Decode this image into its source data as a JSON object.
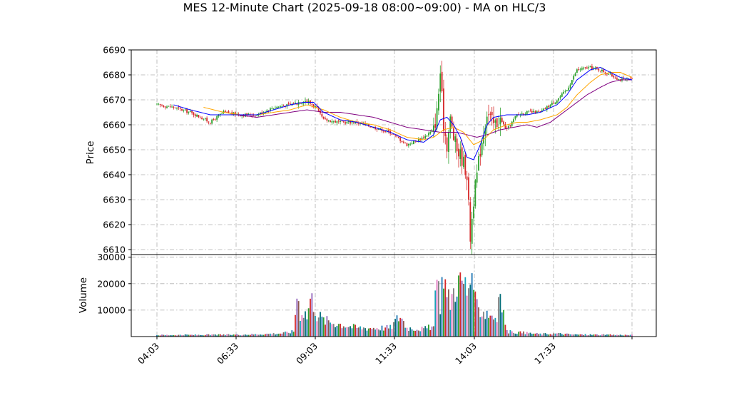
{
  "chart_data": {
    "type": "candlestick",
    "title": "MES 12-Minute Chart (2025-09-18 08:00~09:00) - MA on HLC/3",
    "price_panel": {
      "ylabel": "Price",
      "ylim": [
        6608,
        6690
      ],
      "yticks": [
        6610,
        6620,
        6630,
        6640,
        6650,
        6660,
        6670,
        6680,
        6690
      ],
      "grid": true
    },
    "volume_panel": {
      "ylabel": "Volume",
      "ylim": [
        0,
        31000
      ],
      "yticks": [
        10000,
        20000,
        30000
      ],
      "grid": true
    },
    "x_axis": {
      "tick_labels": [
        "04:03",
        "06:33",
        "09:03",
        "11:33",
        "14:03",
        "17:33"
      ]
    },
    "colors": {
      "up": "#2ca02c",
      "down": "#d62728",
      "ma_fast": "#0000ff",
      "ma_mid": "#ffa500",
      "ma_slow": "#800080",
      "volume": [
        "#1f77b4",
        "#2ca02c",
        "#d62728",
        "#9467bd",
        "#8c564b",
        "#17a2b8",
        "#e377c2",
        "#7f7f7f",
        "#006d77"
      ]
    },
    "price_anchors": [
      [
        0,
        6668
      ],
      [
        10,
        6667
      ],
      [
        20,
        6665
      ],
      [
        32,
        6661
      ],
      [
        40,
        6665
      ],
      [
        50,
        6664
      ],
      [
        60,
        6664
      ],
      [
        70,
        6667
      ],
      [
        80,
        6668
      ],
      [
        88,
        6670
      ],
      [
        94,
        6668
      ],
      [
        100,
        6662
      ],
      [
        110,
        6661
      ],
      [
        120,
        6661
      ],
      [
        130,
        6659
      ],
      [
        140,
        6657
      ],
      [
        150,
        6652
      ],
      [
        160,
        6655
      ],
      [
        166,
        6658
      ],
      [
        168,
        6665
      ],
      [
        170,
        6681
      ],
      [
        172,
        6660
      ],
      [
        174,
        6652
      ],
      [
        176,
        6662
      ],
      [
        178,
        6655
      ],
      [
        180,
        6650
      ],
      [
        182,
        6648
      ],
      [
        184,
        6645
      ],
      [
        186,
        6640
      ],
      [
        188,
        6615
      ],
      [
        190,
        6630
      ],
      [
        194,
        6650
      ],
      [
        198,
        6665
      ],
      [
        202,
        6660
      ],
      [
        206,
        6662
      ],
      [
        210,
        6658
      ],
      [
        216,
        6664
      ],
      [
        222,
        6665
      ],
      [
        230,
        6665
      ],
      [
        240,
        6670
      ],
      [
        246,
        6674
      ],
      [
        252,
        6682
      ],
      [
        260,
        6683
      ],
      [
        266,
        6682
      ],
      [
        272,
        6680
      ],
      [
        278,
        6678
      ],
      [
        285,
        6678
      ]
    ],
    "ma_fast": [
      [
        10,
        6668
      ],
      [
        20,
        6666
      ],
      [
        32,
        6664
      ],
      [
        40,
        6664
      ],
      [
        50,
        6664
      ],
      [
        60,
        6664
      ],
      [
        70,
        6666
      ],
      [
        80,
        6668
      ],
      [
        88,
        6669
      ],
      [
        94,
        6669
      ],
      [
        100,
        6665
      ],
      [
        110,
        6662
      ],
      [
        120,
        6661
      ],
      [
        130,
        6659
      ],
      [
        140,
        6657
      ],
      [
        150,
        6654
      ],
      [
        160,
        6653
      ],
      [
        166,
        6656
      ],
      [
        170,
        6662
      ],
      [
        174,
        6663
      ],
      [
        178,
        6660
      ],
      [
        182,
        6655
      ],
      [
        186,
        6647
      ],
      [
        190,
        6646
      ],
      [
        194,
        6652
      ],
      [
        198,
        6660
      ],
      [
        202,
        6663
      ],
      [
        210,
        6664
      ],
      [
        216,
        6664
      ],
      [
        222,
        6664
      ],
      [
        230,
        6665
      ],
      [
        240,
        6668
      ],
      [
        246,
        6672
      ],
      [
        252,
        6678
      ],
      [
        260,
        6682
      ],
      [
        266,
        6683
      ],
      [
        272,
        6681
      ],
      [
        278,
        6679
      ],
      [
        285,
        6678
      ]
    ],
    "ma_mid": [
      [
        28,
        6667
      ],
      [
        40,
        6665
      ],
      [
        50,
        6664
      ],
      [
        60,
        6664
      ],
      [
        70,
        6665
      ],
      [
        80,
        6666
      ],
      [
        90,
        6668
      ],
      [
        100,
        6666
      ],
      [
        110,
        6663
      ],
      [
        120,
        6661
      ],
      [
        130,
        6660
      ],
      [
        140,
        6658
      ],
      [
        150,
        6655
      ],
      [
        160,
        6654
      ],
      [
        166,
        6655
      ],
      [
        172,
        6658
      ],
      [
        178,
        6659
      ],
      [
        184,
        6657
      ],
      [
        190,
        6652
      ],
      [
        196,
        6654
      ],
      [
        202,
        6658
      ],
      [
        210,
        6660
      ],
      [
        216,
        6661
      ],
      [
        222,
        6661
      ],
      [
        230,
        6662
      ],
      [
        240,
        6664
      ],
      [
        246,
        6667
      ],
      [
        252,
        6672
      ],
      [
        260,
        6677
      ],
      [
        266,
        6680
      ],
      [
        272,
        6681
      ],
      [
        278,
        6681
      ],
      [
        285,
        6679
      ]
    ],
    "ma_slow": [
      [
        48,
        6664
      ],
      [
        60,
        6663
      ],
      [
        70,
        6664
      ],
      [
        80,
        6665
      ],
      [
        90,
        6666
      ],
      [
        100,
        6665
      ],
      [
        110,
        6665
      ],
      [
        120,
        6664
      ],
      [
        130,
        6663
      ],
      [
        140,
        6661
      ],
      [
        150,
        6659
      ],
      [
        160,
        6658
      ],
      [
        170,
        6657
      ],
      [
        180,
        6657
      ],
      [
        186,
        6656
      ],
      [
        192,
        6655
      ],
      [
        198,
        6656
      ],
      [
        206,
        6658
      ],
      [
        214,
        6659
      ],
      [
        222,
        6660
      ],
      [
        228,
        6659
      ],
      [
        236,
        6661
      ],
      [
        242,
        6664
      ],
      [
        250,
        6668
      ],
      [
        258,
        6672
      ],
      [
        266,
        6675
      ],
      [
        272,
        6677
      ],
      [
        278,
        6678
      ],
      [
        285,
        6678
      ]
    ],
    "volume_anchors": [
      [
        0,
        600
      ],
      [
        40,
        700
      ],
      [
        60,
        900
      ],
      [
        75,
        1300
      ],
      [
        82,
        2000
      ],
      [
        84,
        17500
      ],
      [
        86,
        9500
      ],
      [
        88,
        10500
      ],
      [
        90,
        8000
      ],
      [
        92,
        15000
      ],
      [
        94,
        14000
      ],
      [
        96,
        9000
      ],
      [
        100,
        6500
      ],
      [
        110,
        5000
      ],
      [
        120,
        3500
      ],
      [
        130,
        3500
      ],
      [
        140,
        3500
      ],
      [
        146,
        8500
      ],
      [
        150,
        3500
      ],
      [
        160,
        3000
      ],
      [
        166,
        4000
      ],
      [
        168,
        23000
      ],
      [
        170,
        14000
      ],
      [
        172,
        28000
      ],
      [
        174,
        15000
      ],
      [
        176,
        14500
      ],
      [
        178,
        18000
      ],
      [
        180,
        23000
      ],
      [
        182,
        21000
      ],
      [
        184,
        22000
      ],
      [
        186,
        18000
      ],
      [
        188,
        23500
      ],
      [
        190,
        14000
      ],
      [
        194,
        11000
      ],
      [
        200,
        9000
      ],
      [
        204,
        7500
      ],
      [
        206,
        16000
      ],
      [
        210,
        2000
      ],
      [
        230,
        1000
      ],
      [
        240,
        1200
      ],
      [
        250,
        800
      ],
      [
        285,
        600
      ]
    ]
  }
}
